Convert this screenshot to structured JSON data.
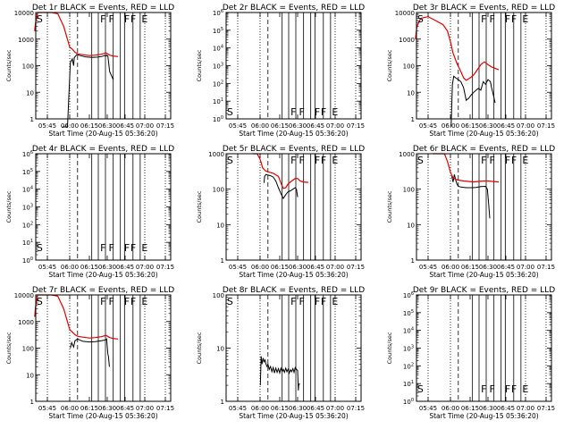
{
  "xaxis": {
    "ticks": [
      "05:45",
      "06:00",
      "06:15",
      "06:30",
      "06:45",
      "07:00",
      "07:15"
    ],
    "label": "Start Time (20-Aug-15 05:36:20)"
  },
  "colors": {
    "events": "#000000",
    "lld": "#e00000",
    "grid": "#000000"
  },
  "chart_data": [
    {
      "type": "line",
      "title": "Det 1r BLACK = Events, RED = LLD",
      "ylabel": "Counts/sec",
      "ylim": [
        1,
        10000
      ],
      "yticks": [
        {
          "v": 1,
          "t": "1"
        },
        {
          "v": 10,
          "t": "10"
        },
        {
          "v": 100,
          "t": "100"
        },
        {
          "v": 1000,
          "t": "1000"
        },
        {
          "v": 10000,
          "t": "10000"
        }
      ],
      "markers": [
        "S",
        "F",
        "F",
        "F",
        "F",
        "E"
      ],
      "series": [
        {
          "name": "Events",
          "color": "#000000",
          "x": [
            55.0,
            58.5,
            60.5,
            62.0,
            63.0,
            63.5,
            64.5,
            65.5,
            68.0,
            72.0,
            77.0,
            82.0,
            85.0,
            88.0,
            89.0,
            89.5,
            90.5,
            92.0,
            95.0
          ],
          "y": [
            0,
            0,
            130,
            180,
            100,
            200,
            230,
            260,
            240,
            215,
            205,
            210,
            220,
            240,
            230,
            250,
            230,
            60,
            30
          ]
        },
        {
          "name": "LLD",
          "color": "#e00000",
          "x": [
            36.5,
            37.0,
            38.5,
            41.0,
            44.0,
            48.0,
            52.0,
            56.0,
            60.0,
            62.0,
            64.0,
            66.0,
            70.0,
            75.0,
            80.0,
            85.0,
            89.0,
            92.0,
            95.0,
            99.0
          ],
          "y": [
            2000,
            4000,
            10000,
            10000,
            10000,
            10000,
            9000,
            3000,
            500,
            420,
            320,
            280,
            260,
            240,
            250,
            270,
            300,
            250,
            230,
            220
          ]
        }
      ]
    },
    {
      "type": "line",
      "title": "Det 2r BLACK = Events, RED = LLD",
      "ylabel": "Counts/sec",
      "ylim": [
        1,
        1000000
      ],
      "yticks": [
        {
          "v": 1,
          "t": "10^0"
        },
        {
          "v": 10,
          "t": "10^1"
        },
        {
          "v": 100,
          "t": "10^2"
        },
        {
          "v": 1000,
          "t": "10^3"
        },
        {
          "v": 10000,
          "t": "10^4"
        },
        {
          "v": 100000,
          "t": "10^5"
        },
        {
          "v": 1000000,
          "t": "10^6"
        }
      ],
      "markers": [
        "S",
        "F",
        "F",
        "F",
        "F",
        "E"
      ],
      "series": []
    },
    {
      "type": "line",
      "title": "Det 3r BLACK = Events, RED = LLD",
      "ylabel": "Counts/sec",
      "ylim": [
        1,
        10000
      ],
      "yticks": [
        {
          "v": 1,
          "t": "1"
        },
        {
          "v": 10,
          "t": "10"
        },
        {
          "v": 100,
          "t": "100"
        },
        {
          "v": 1000,
          "t": "1000"
        },
        {
          "v": 10000,
          "t": "10000"
        }
      ],
      "markers": [
        "S",
        "F",
        "F",
        "F",
        "F",
        "E"
      ],
      "series": [
        {
          "name": "Events",
          "color": "#000000",
          "x": [
            60.5,
            61.5,
            62.5,
            64.0,
            66.0,
            68.0,
            70.0,
            72.0,
            74.0,
            76.0,
            78.0,
            80.0,
            82.0,
            84.0,
            86.0,
            88.0,
            90.0,
            92.0,
            93.0,
            94.0,
            96.0
          ],
          "y": [
            0,
            20,
            40,
            35,
            30,
            25,
            15,
            5,
            6,
            8,
            10,
            12,
            14,
            12,
            25,
            20,
            30,
            25,
            15,
            10,
            4
          ]
        },
        {
          "name": "LLD",
          "color": "#e00000",
          "x": [
            36.5,
            37.5,
            40.0,
            45.0,
            50.0,
            55.0,
            58.0,
            60.0,
            62.0,
            65.0,
            68.0,
            70.0,
            72.0,
            75.0,
            78.0,
            81.0,
            84.0,
            87.0,
            90.0,
            93.0,
            96.0,
            99.0
          ],
          "y": [
            1000,
            3000,
            6000,
            7000,
            5000,
            3500,
            2000,
            800,
            300,
            120,
            60,
            35,
            28,
            35,
            45,
            70,
            110,
            140,
            110,
            90,
            80,
            70
          ]
        }
      ]
    },
    {
      "type": "line",
      "title": "Det 4r BLACK = Events, RED = LLD",
      "ylabel": "Counts/sec",
      "ylim": [
        1,
        1000000
      ],
      "yticks": [
        {
          "v": 1,
          "t": "10^0"
        },
        {
          "v": 10,
          "t": "10^1"
        },
        {
          "v": 100,
          "t": "10^2"
        },
        {
          "v": 1000,
          "t": "10^3"
        },
        {
          "v": 10000,
          "t": "10^4"
        },
        {
          "v": 100000,
          "t": "10^5"
        },
        {
          "v": 1000000,
          "t": "10^6"
        }
      ],
      "markers": [
        "S",
        "F",
        "F",
        "F",
        "F",
        "E"
      ],
      "series": []
    },
    {
      "type": "line",
      "title": "Det 5r BLACK = Events, RED = LLD",
      "ylabel": "Counts/sec",
      "ylim": [
        1,
        1000
      ],
      "yticks": [
        {
          "v": 1,
          "t": "1"
        },
        {
          "v": 10,
          "t": "10"
        },
        {
          "v": 100,
          "t": "100"
        },
        {
          "v": 1000,
          "t": "1000"
        }
      ],
      "markers": [
        "S",
        "F",
        "F",
        "F",
        "F",
        "E"
      ],
      "series": [
        {
          "name": "Events",
          "color": "#000000",
          "x": [
            63.0,
            63.5,
            64.5,
            66.0,
            68.0,
            70.0,
            72.0,
            74.0,
            76.0,
            78.0,
            80.0,
            82.0,
            84.0,
            86.0,
            88.0,
            89.0,
            90.0
          ],
          "y": [
            150,
            230,
            260,
            250,
            240,
            220,
            170,
            110,
            75,
            55,
            70,
            85,
            90,
            100,
            110,
            100,
            60
          ]
        },
        {
          "name": "LLD",
          "color": "#e00000",
          "x": [
            55.0,
            58.0,
            60.0,
            62.0,
            64.0,
            66.0,
            70.0,
            74.0,
            76.0,
            78.0,
            80.0,
            82.0,
            85.0,
            88.0,
            90.0,
            92.0,
            95.0,
            99.0
          ],
          "y": [
            1000,
            1000,
            700,
            400,
            330,
            310,
            280,
            230,
            150,
            105,
            110,
            140,
            170,
            200,
            200,
            170,
            160,
            155
          ]
        }
      ]
    },
    {
      "type": "line",
      "title": "Det 6r BLACK = Events, RED = LLD",
      "ylabel": "Counts/sec",
      "ylim": [
        1,
        1000
      ],
      "yticks": [
        {
          "v": 1,
          "t": "1"
        },
        {
          "v": 10,
          "t": "10"
        },
        {
          "v": 100,
          "t": "100"
        },
        {
          "v": 1000,
          "t": "1000"
        }
      ],
      "markers": [
        "S",
        "F",
        "F",
        "F",
        "F",
        "E"
      ],
      "series": [
        {
          "name": "Events",
          "color": "#000000",
          "x": [
            61.0,
            62.0,
            63.0,
            64.0,
            65.0,
            66.0,
            68.0,
            72.0,
            76.0,
            80.0,
            84.0,
            88.0,
            89.5,
            90.5,
            91.5
          ],
          "y": [
            230,
            160,
            260,
            180,
            140,
            120,
            115,
            110,
            110,
            112,
            118,
            120,
            100,
            40,
            15
          ]
        },
        {
          "name": "LLD",
          "color": "#e00000",
          "x": [
            48.0,
            52.0,
            56.0,
            58.0,
            60.0,
            62.0,
            64.0,
            66.0,
            70.0,
            74.0,
            78.0,
            82.0,
            86.0,
            90.0,
            94.0,
            99.0
          ],
          "y": [
            1000,
            1000,
            1000,
            600,
            300,
            210,
            190,
            180,
            170,
            165,
            160,
            165,
            170,
            170,
            165,
            160
          ]
        }
      ]
    },
    {
      "type": "line",
      "title": "Det 7r BLACK = Events, RED = LLD",
      "ylabel": "Counts/sec",
      "ylim": [
        1,
        10000
      ],
      "yticks": [
        {
          "v": 1,
          "t": "1"
        },
        {
          "v": 10,
          "t": "10"
        },
        {
          "v": 100,
          "t": "100"
        },
        {
          "v": 1000,
          "t": "1000"
        },
        {
          "v": 10000,
          "t": "10000"
        }
      ],
      "markers": [
        "S",
        "F",
        "F",
        "F",
        "F",
        "E"
      ],
      "series": [
        {
          "name": "Events",
          "color": "#000000",
          "x": [
            60.5,
            61.5,
            63.0,
            64.0,
            66.0,
            70.0,
            75.0,
            80.0,
            85.0,
            88.0,
            89.0,
            89.5,
            90.5,
            91.0,
            91.8
          ],
          "y": [
            100,
            160,
            110,
            190,
            220,
            180,
            170,
            175,
            190,
            200,
            210,
            220,
            60,
            50,
            20
          ]
        },
        {
          "name": "LLD",
          "color": "#e00000",
          "x": [
            36.5,
            37.0,
            38.5,
            41.0,
            44.0,
            48.0,
            52.0,
            56.0,
            60.0,
            62.0,
            64.0,
            66.0,
            70.0,
            75.0,
            80.0,
            85.0,
            89.0,
            92.0,
            95.0,
            99.0
          ],
          "y": [
            1500,
            3500,
            10000,
            10000,
            10000,
            10000,
            9000,
            3000,
            500,
            400,
            320,
            280,
            260,
            240,
            250,
            270,
            300,
            250,
            230,
            220
          ]
        }
      ]
    },
    {
      "type": "line",
      "title": "Det 8r BLACK = Events, RED = LLD",
      "ylabel": "Counts/sec",
      "ylim": [
        1,
        100
      ],
      "yticks": [
        {
          "v": 1,
          "t": "1"
        },
        {
          "v": 10,
          "t": "10"
        },
        {
          "v": 100,
          "t": "100"
        }
      ],
      "markers": [
        "S",
        "F",
        "F",
        "F",
        "F",
        "E"
      ],
      "series": [
        {
          "name": "Events",
          "color": "#000000",
          "x": [
            60.2,
            60.8,
            61.5,
            62.3,
            63.0,
            63.8,
            64.5,
            65.3,
            66.0,
            67.0,
            68.0,
            69.0,
            70.0,
            71.0,
            72.0,
            73.0,
            74.0,
            75.0,
            76.0,
            77.0,
            78.0,
            79.0,
            80.0,
            81.0,
            82.0,
            83.0,
            84.0,
            85.0,
            86.0,
            87.0,
            88.0,
            89.0,
            90.0,
            90.6,
            91.0,
            92.0
          ],
          "y": [
            2,
            7,
            5,
            6.5,
            5.5,
            6,
            5,
            4.5,
            5,
            4,
            4.5,
            3.6,
            4.3,
            3.4,
            4.2,
            3.5,
            4.1,
            3.4,
            4.2,
            3.6,
            4.0,
            3.5,
            4.2,
            3.6,
            4.0,
            3.4,
            3.9,
            3.6,
            4.1,
            3.5,
            4.3,
            4.0,
            3.8,
            1.6,
            2.1,
            2.1
          ]
        }
      ]
    },
    {
      "type": "line",
      "title": "Det 9r BLACK = Events, RED = LLD",
      "ylabel": "Counts/sec",
      "ylim": [
        1,
        1000000
      ],
      "yticks": [
        {
          "v": 1,
          "t": "10^0"
        },
        {
          "v": 10,
          "t": "10^1"
        },
        {
          "v": 100,
          "t": "10^2"
        },
        {
          "v": 1000,
          "t": "10^3"
        },
        {
          "v": 10000,
          "t": "10^4"
        },
        {
          "v": 100000,
          "t": "10^5"
        },
        {
          "v": 1000000,
          "t": "10^6"
        }
      ],
      "markers": [
        "S",
        "F",
        "F",
        "F",
        "F",
        "E"
      ],
      "series": []
    }
  ]
}
